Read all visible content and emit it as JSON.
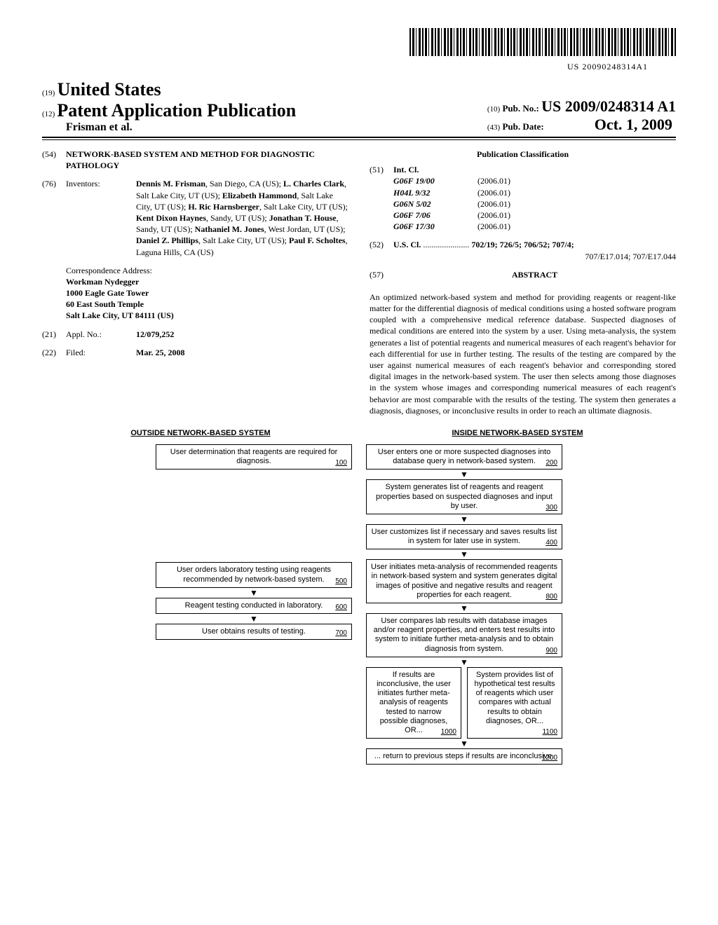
{
  "barcode_text": "US 20090248314A1",
  "header": {
    "code19": "(19)",
    "country": "United States",
    "code12": "(12)",
    "doctype": "Patent Application Publication",
    "authors": "Frisman et al.",
    "code10": "(10)",
    "pubnum_label": "Pub. No.:",
    "pubnum": "US 2009/0248314 A1",
    "code43": "(43)",
    "pubdate_label": "Pub. Date:",
    "pubdate": "Oct. 1, 2009"
  },
  "left": {
    "c54": "(54)",
    "title": "NETWORK-BASED SYSTEM AND METHOD FOR DIAGNOSTIC PATHOLOGY",
    "c76": "(76)",
    "inventors_label": "Inventors:",
    "inventors_html": "Dennis M. Frisman, San Diego, CA (US); L. Charles Clark, Salt Lake City, UT (US); Elizabeth Hammond, Salt Lake City, UT (US); H. Ric Harnsberger, Salt Lake City, UT (US); Kent Dixon Haynes, Sandy, UT (US); Jonathan T. House, Sandy, UT (US); Nathaniel M. Jones, West Jordan, UT (US); Daniel Z. Phillips, Salt Lake City, UT (US); Paul F. Scholtes, Laguna Hills, CA (US)",
    "corr_label": "Correspondence Address:",
    "corr1": "Workman Nydegger",
    "corr2": "1000 Eagle Gate Tower",
    "corr3": "60 East South Temple",
    "corr4": "Salt Lake City, UT 84111 (US)",
    "c21": "(21)",
    "appl_label": "Appl. No.:",
    "appl_no": "12/079,252",
    "c22": "(22)",
    "filed_label": "Filed:",
    "filed": "Mar. 25, 2008"
  },
  "right": {
    "pubclass": "Publication Classification",
    "c51": "(51)",
    "intcl_label": "Int. Cl.",
    "intcl": [
      {
        "code": "G06F 19/00",
        "ver": "(2006.01)"
      },
      {
        "code": "H04L 9/32",
        "ver": "(2006.01)"
      },
      {
        "code": "G06N 5/02",
        "ver": "(2006.01)"
      },
      {
        "code": "G06F 7/06",
        "ver": "(2006.01)"
      },
      {
        "code": "G06F 17/30",
        "ver": "(2006.01)"
      }
    ],
    "c52": "(52)",
    "uscl_label": "U.S. Cl.",
    "uscl_dots": " ...................... ",
    "uscl1": "702/19; 726/5; 706/52; 707/4;",
    "uscl2": "707/E17.014; 707/E17.044",
    "c57": "(57)",
    "abstract_label": "ABSTRACT",
    "abstract": "An optimized network-based system and method for providing reagents or reagent-like matter for the differential diagnosis of medical conditions using a hosted software program coupled with a comprehensive medical reference database. Suspected diagnoses of medical conditions are entered into the system by a user. Using meta-analysis, the system generates a list of potential reagents and numerical measures of each reagent's behavior for each differential for use in further testing. The results of the testing are compared by the user against numerical measures of each reagent's behavior and corresponding stored digital images in the network-based system. The user then selects among those diagnoses in the system whose images and corresponding numerical measures of each reagent's behavior are most comparable with the results of the testing. The system then generates a diagnosis, diagnoses, or inconclusive results in order to reach an ultimate diagnosis."
  },
  "flow": {
    "h_left": "OUTSIDE NETWORK-BASED SYSTEM",
    "h_right": "INSIDE NETWORK-BASED SYSTEM",
    "b100": "User determination that reagents are required for diagnosis.",
    "b200": "User enters one or more suspected diagnoses into database query in network-based system.",
    "b300": "System generates list of reagents and reagent properties based on suspected diagnoses and input by user.",
    "b400": "User customizes list if necessary and saves results list in system for later use in system.",
    "b500": "User orders laboratory testing using reagents recommended by network-based system.",
    "b600": "Reagent testing conducted in laboratory.",
    "b700": "User obtains results of testing.",
    "b800": "User initiates meta-analysis of recommended reagents in network-based system and system generates digital images of positive and negative results and reagent properties for each reagent.",
    "b900": "User compares lab results with database images and/or reagent properties, and enters test results into system to initiate further meta-analysis and to obtain diagnosis from system.",
    "b1000": "If results are inconclusive, the user initiates further meta-analysis of reagents tested to narrow possible diagnoses, OR...",
    "b1100": "System provides list of hypothetical test results of reagents which user compares with actual results to obtain diagnoses, OR...",
    "b1200": "... return to previous steps if results are inconclusive.",
    "r100": "100",
    "r200": "200",
    "r300": "300",
    "r400": "400",
    "r500": "500",
    "r600": "600",
    "r700": "700",
    "r800": "800",
    "r900": "900",
    "r1000": "1000",
    "r1100": "1100",
    "r1200": "1200"
  }
}
